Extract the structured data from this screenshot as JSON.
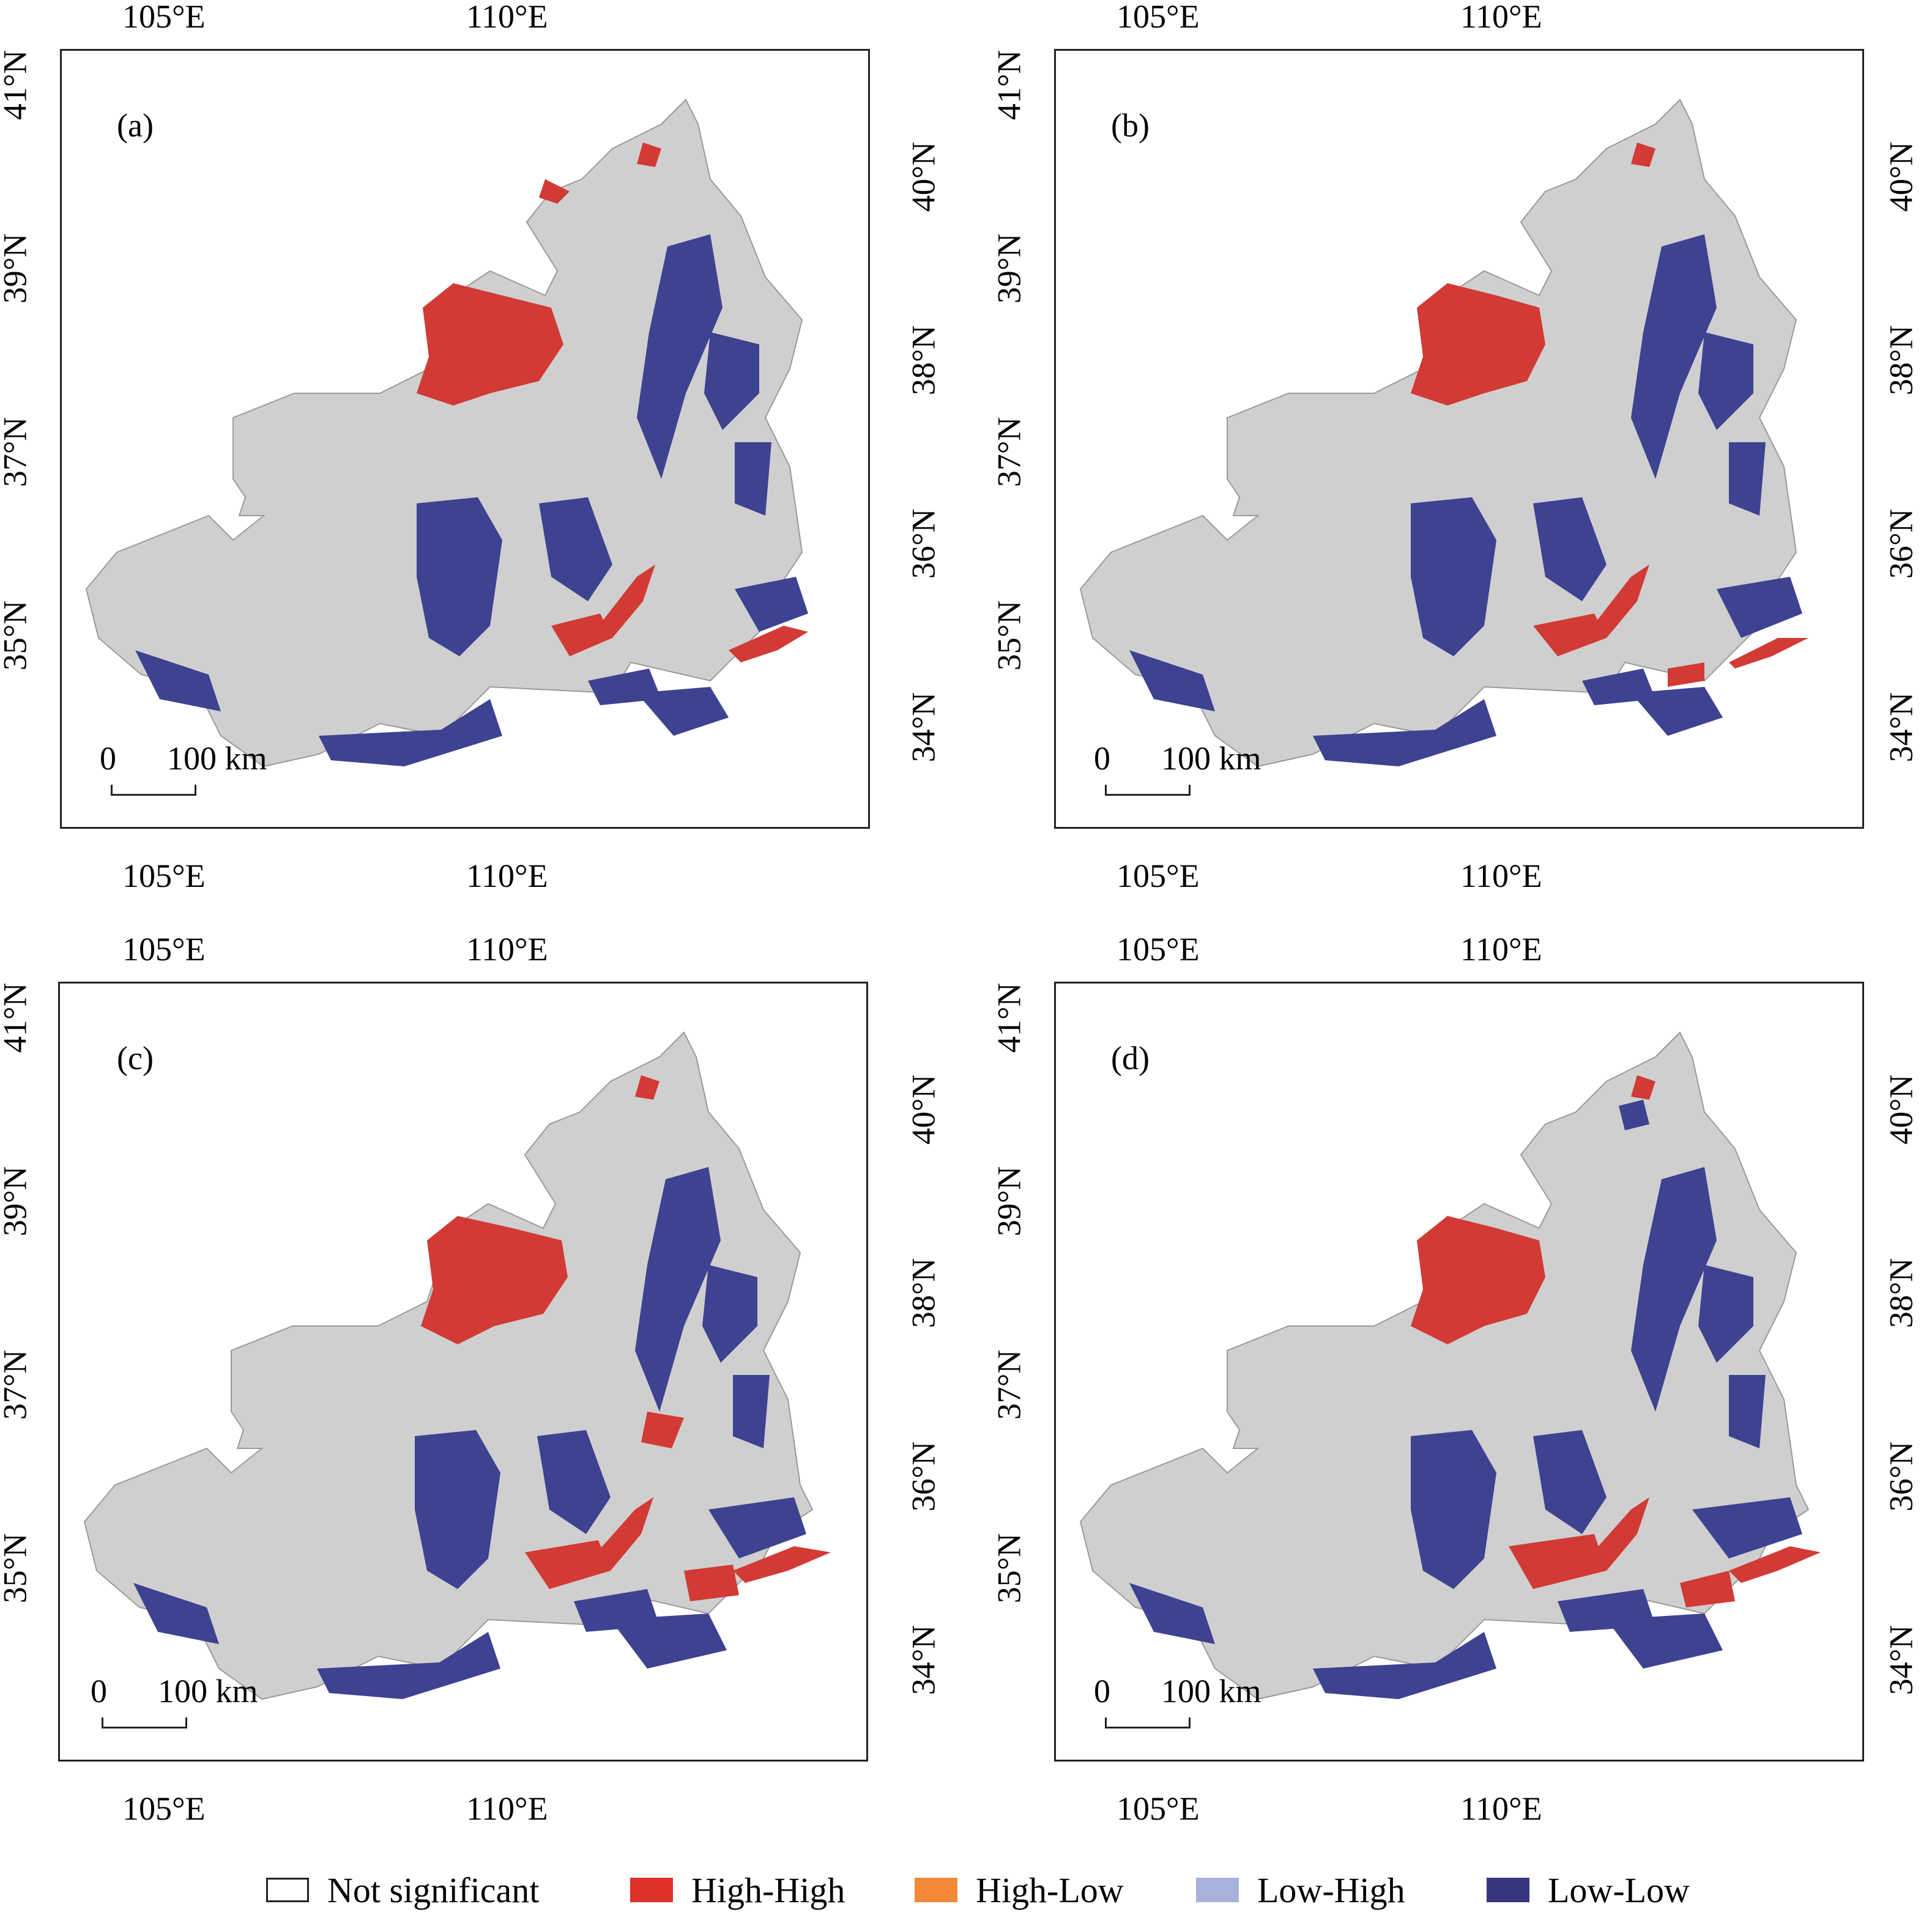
{
  "panels": [
    {
      "id": "a",
      "label": "(a)"
    },
    {
      "id": "b",
      "label": "(b)"
    },
    {
      "id": "c",
      "label": "(c)"
    },
    {
      "id": "d",
      "label": "(d)"
    }
  ],
  "axes": {
    "lon_ticks": [
      "105°E",
      "110°E"
    ],
    "lat_ticks_left": [
      "41°N",
      "39°N",
      "37°N",
      "35°N"
    ],
    "lat_ticks_right": [
      "40°N",
      "38°N",
      "36°N",
      "34°N"
    ]
  },
  "scale": {
    "zero": "0",
    "label": "100 km"
  },
  "legend": [
    {
      "label": "Not significant",
      "color": "#ffffff"
    },
    {
      "label": "High-High",
      "color": "#e0302a"
    },
    {
      "label": "High-Low",
      "color": "#f28a35"
    },
    {
      "label": "Low-High",
      "color": "#a7b2dc"
    },
    {
      "label": "Low-Low",
      "color": "#353580"
    }
  ],
  "colors": {
    "region_fill": "#cfcfcf",
    "high_high": "#d23a35",
    "low_low": "#3d4291"
  }
}
